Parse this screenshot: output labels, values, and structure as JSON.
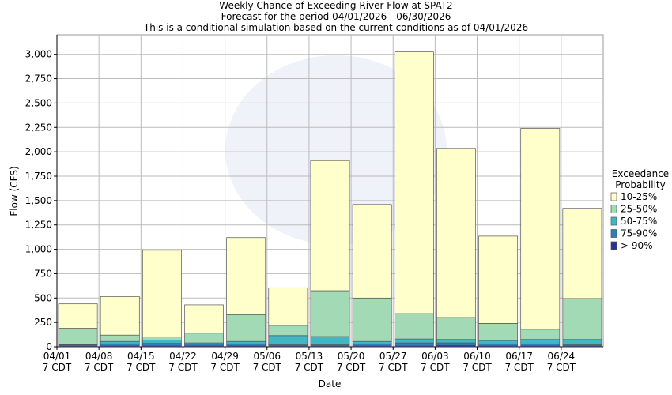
{
  "chart_data": {
    "type": "stacked_bar",
    "title": "Weekly Chance of Exceeding River Flow at SPAT2",
    "subtitle": "Forecast for the period 04/01/2026 - 06/30/2026",
    "subtitle2": "This is a conditional simulation based on the current conditions as of 04/01/2026",
    "x_label": "Date",
    "y_label": "Flow (CFS)",
    "legend_title": [
      "Exceedance",
      "Probability"
    ],
    "categories": [
      "04/01",
      "04/08",
      "04/15",
      "04/22",
      "04/29",
      "05/06",
      "05/13",
      "05/20",
      "05/27",
      "06/03",
      "06/10",
      "06/17",
      "06/24"
    ],
    "category_sublabels": [
      "7 CDT",
      "7 CDT",
      "7 CDT",
      "7 CDT",
      "7 CDT",
      "7 CDT",
      "7 CDT",
      "7 CDT",
      "7 CDT",
      "7 CDT",
      "7 CDT",
      "7 CDT",
      "7 CDT"
    ],
    "series": [
      {
        "name": "10-25%",
        "color": "#ffffcc",
        "values": [
          250,
          395,
          890,
          290,
          790,
          385,
          1335,
          960,
          2685,
          1735,
          895,
          2060,
          925
        ]
      },
      {
        "name": "25-50%",
        "color": "#a1dab4",
        "values": [
          165,
          65,
          30,
          100,
          275,
          105,
          470,
          445,
          260,
          225,
          175,
          105,
          420
        ]
      },
      {
        "name": "50-75%",
        "color": "#41b6c4",
        "values": [
          5,
          25,
          35,
          10,
          25,
          95,
          85,
          25,
          40,
          35,
          35,
          45,
          55
        ]
      },
      {
        "name": "75-90%",
        "color": "#2c7fb8",
        "values": [
          10,
          20,
          25,
          20,
          20,
          10,
          10,
          20,
          30,
          25,
          20,
          20,
          10
        ]
      },
      {
        "name": "> 90%",
        "color": "#253494",
        "values": [
          10,
          10,
          10,
          10,
          10,
          10,
          10,
          10,
          10,
          15,
          10,
          10,
          10
        ]
      }
    ],
    "ylim": [
      0,
      3200
    ],
    "yticks": [
      0,
      250,
      500,
      750,
      {
        "value": 1000,
        "label": "1,000"
      },
      {
        "value": 1250,
        "label": "1,250"
      },
      {
        "value": 1500,
        "label": "1,500"
      },
      {
        "value": 1750,
        "label": "1,750"
      },
      {
        "value": 2000,
        "label": "2,000"
      },
      {
        "value": 2250,
        "label": "2,250"
      },
      {
        "value": 2500,
        "label": "2,500"
      },
      {
        "value": 2750,
        "label": "2,750"
      },
      {
        "value": 3000,
        "label": "3,000"
      }
    ],
    "grid": true
  }
}
